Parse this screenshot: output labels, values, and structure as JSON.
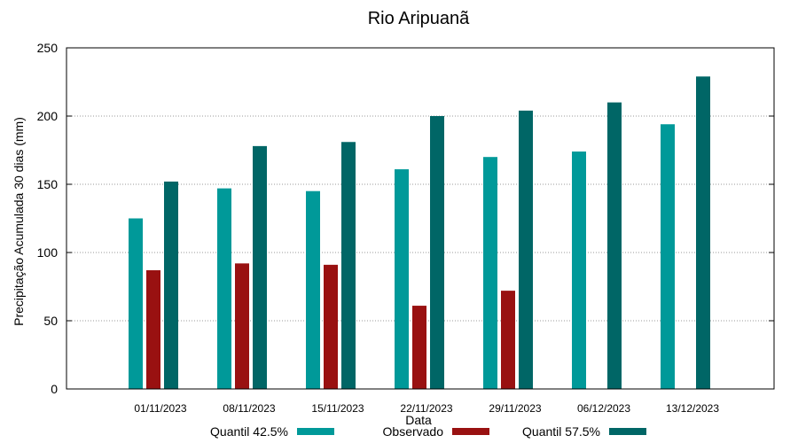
{
  "chart_data": {
    "type": "bar",
    "title": "Rio Aripuanã",
    "xlabel": "Data",
    "ylabel": "Precipitação Acumulada 30 dias (mm)",
    "ylim": [
      0,
      250
    ],
    "yticks": [
      0,
      50,
      100,
      150,
      200,
      250
    ],
    "grid": true,
    "legend_position": "bottom",
    "categories": [
      "01/11/2023",
      "08/11/2023",
      "15/11/2023",
      "22/11/2023",
      "29/11/2023",
      "06/12/2023",
      "13/12/2023"
    ],
    "series": [
      {
        "name": "Quantil 42.5%",
        "color": "#009999",
        "values": [
          125,
          147,
          145,
          161,
          170,
          174,
          194
        ]
      },
      {
        "name": "Observado",
        "color": "#991111",
        "values": [
          87,
          92,
          91,
          61,
          72,
          null,
          null
        ]
      },
      {
        "name": "Quantil 57.5%",
        "color": "#006666",
        "values": [
          152,
          178,
          181,
          200,
          204,
          210,
          229
        ]
      }
    ]
  }
}
